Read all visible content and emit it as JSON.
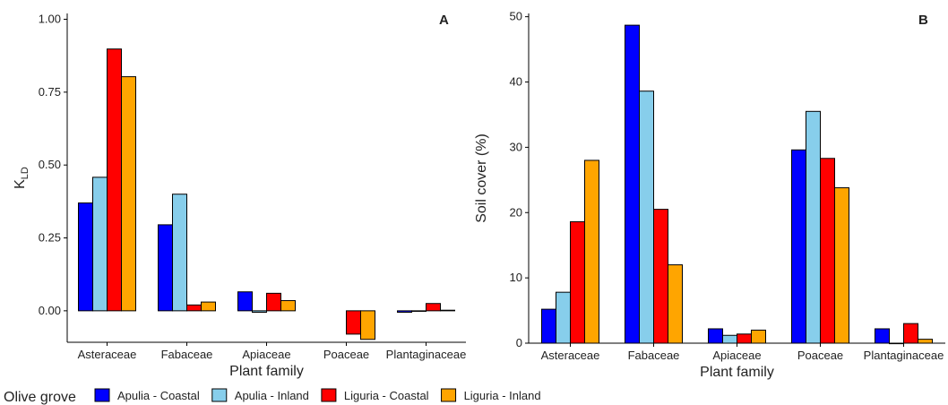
{
  "chart_data": [
    {
      "type": "bar",
      "panel": "A",
      "xlabel": "Plant family",
      "ylabel": "K",
      "ylabel_subscript": "LD",
      "legend_title": "Olive grove",
      "categories": [
        "Asteraceae",
        "Fabaceae",
        "Apiaceae",
        "Poaceae",
        "Plantaginaceae"
      ],
      "series": [
        {
          "name": "Apulia - Coastal",
          "color": "#0000ff",
          "values": [
            0.37,
            0.295,
            0.065,
            null,
            -0.005
          ]
        },
        {
          "name": "Apulia - Inland",
          "color": "#87ceeb",
          "values": [
            0.458,
            0.4,
            -0.005,
            null,
            0.0
          ]
        },
        {
          "name": "Liguria - Coastal",
          "color": "#ff0000",
          "values": [
            0.898,
            0.02,
            0.06,
            -0.08,
            0.025
          ]
        },
        {
          "name": "Liguria - Inland",
          "color": "#ffa500",
          "values": [
            0.803,
            0.03,
            0.035,
            -0.098,
            0.002
          ]
        }
      ],
      "ylim": [
        -0.108,
        1.02
      ],
      "yticks": [
        {
          "value": 0,
          "label": "0.00"
        },
        {
          "value": 0.25,
          "label": "0.25"
        },
        {
          "value": 0.5,
          "label": "0.50"
        },
        {
          "value": 0.75,
          "label": "0.75"
        },
        {
          "value": 1,
          "label": "1.00"
        }
      ]
    },
    {
      "type": "bar",
      "panel": "B",
      "xlabel": "Plant family",
      "ylabel": "Soil cover (%)",
      "categories": [
        "Asteraceae",
        "Fabaceae",
        "Apiaceae",
        "Poaceae",
        "Plantaginaceae"
      ],
      "series": [
        {
          "name": "Apulia - Coastal",
          "color": "#0000ff",
          "values": [
            5.2,
            48.7,
            2.2,
            29.6,
            2.2
          ]
        },
        {
          "name": "Apulia - Inland",
          "color": "#87ceeb",
          "values": [
            7.8,
            38.6,
            1.2,
            35.5,
            0
          ]
        },
        {
          "name": "Liguria - Coastal",
          "color": "#ff0000",
          "values": [
            18.6,
            20.5,
            1.4,
            28.3,
            3.0
          ]
        },
        {
          "name": "Liguria - Inland",
          "color": "#ffa500",
          "values": [
            28.0,
            12.0,
            2.0,
            23.8,
            0.6
          ]
        }
      ],
      "ylim": [
        0,
        50.5
      ],
      "yticks": [
        0,
        10,
        20,
        30,
        40,
        50
      ]
    }
  ]
}
